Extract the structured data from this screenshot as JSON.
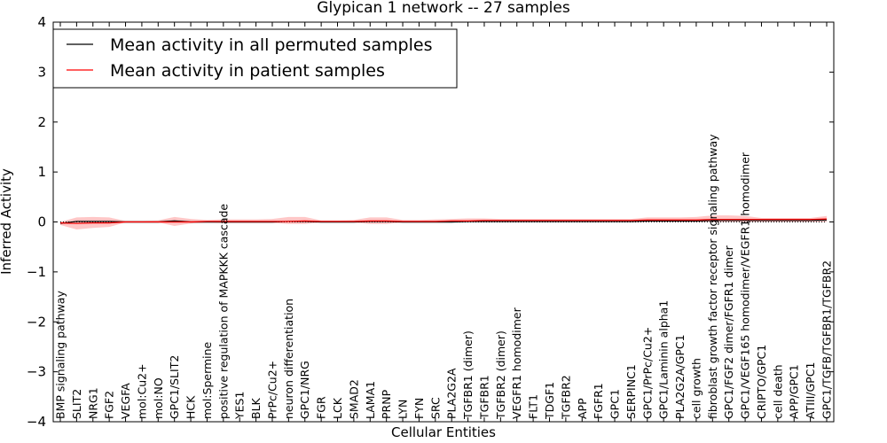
{
  "chart_data": {
    "type": "line",
    "title": "Glypican 1 network -- 27 samples",
    "xlabel": "Cellular Entities",
    "ylabel": "Inferred Activity",
    "ylim": [
      -4,
      4
    ],
    "yticks": [
      -4,
      -3,
      -2,
      -1,
      0,
      1,
      2,
      3,
      4
    ],
    "ytick_labels": [
      "−4",
      "−3",
      "−2",
      "−1",
      "0",
      "1",
      "2",
      "3",
      "4"
    ],
    "grid": false,
    "legend_position": "upper-left",
    "categories": [
      "BMP signaling pathway",
      "SLIT2",
      "NRG1",
      "FGF2",
      "VEGFA",
      "mol:Cu2+",
      "mol:NO",
      "GPC1/SLIT2",
      "HCK",
      "mol:Spermine",
      "positive regulation of MAPKKK cascade",
      "YES1",
      "BLK",
      "PrPc/Cu2+",
      "neuron differentiation",
      "GPC1/NRG",
      "FGR",
      "LCK",
      "SMAD2",
      "LAMA1",
      "PRNP",
      "LYN",
      "FYN",
      "SRC",
      "PLA2G2A",
      "TGFBR1 (dimer)",
      "TGFBR1",
      "TGFBR2 (dimer)",
      "VEGFR1 homodimer",
      "FLT1",
      "TDGF1",
      "TGFBR2",
      "APP",
      "FGFR1",
      "GPC1",
      "SERPINC1",
      "GPC1/PrPc/Cu2+",
      "GPC1/Laminin alpha1",
      "PLA2G2A/GPC1",
      "cell growth",
      "fibroblast growth factor receptor signaling pathway",
      "GPC1/FGF2 dimer/FGFR1 dimer",
      "GPC1/VEGF165 homodimer/VEGFR1 homodimer",
      "CRIPTO/GPC1",
      "cell death",
      "APP/GPC1",
      "ATIII/GPC1",
      "GPC1/TGFB/TGFBR1/TGFBR2"
    ],
    "series": [
      {
        "name": "Mean activity in all permuted samples",
        "color": "#000000",
        "values": [
          -0.03,
          0.01,
          0.01,
          0.01,
          0.0,
          0.0,
          0.0,
          0.02,
          0.0,
          0.0,
          0.0,
          0.0,
          0.0,
          0.0,
          0.01,
          0.01,
          0.0,
          0.0,
          0.0,
          0.01,
          0.01,
          0.0,
          0.0,
          0.0,
          0.0,
          0.01,
          0.01,
          0.01,
          0.01,
          0.01,
          0.01,
          0.01,
          0.01,
          0.01,
          0.01,
          0.01,
          0.02,
          0.02,
          0.02,
          0.02,
          0.03,
          0.03,
          0.03,
          0.03,
          0.03,
          0.03,
          0.03,
          0.04
        ],
        "band": {
          "color": "#cccccc",
          "lower": [
            -0.05,
            -0.03,
            -0.03,
            -0.03,
            -0.03,
            -0.03,
            -0.03,
            -0.02,
            -0.03,
            -0.03,
            -0.03,
            -0.03,
            -0.03,
            -0.03,
            -0.02,
            -0.02,
            -0.03,
            -0.03,
            -0.03,
            -0.02,
            -0.02,
            -0.03,
            -0.03,
            -0.03,
            -0.03,
            -0.02,
            -0.02,
            -0.02,
            -0.02,
            -0.02,
            -0.02,
            -0.02,
            -0.02,
            -0.02,
            -0.02,
            -0.02,
            -0.01,
            -0.01,
            -0.01,
            -0.01,
            0.0,
            0.0,
            0.0,
            0.0,
            0.0,
            0.0,
            0.0,
            0.01
          ],
          "upper": [
            -0.01,
            0.04,
            0.04,
            0.04,
            0.03,
            0.03,
            0.03,
            0.05,
            0.03,
            0.03,
            0.03,
            0.03,
            0.03,
            0.03,
            0.04,
            0.04,
            0.03,
            0.03,
            0.03,
            0.04,
            0.04,
            0.03,
            0.03,
            0.03,
            0.03,
            0.04,
            0.04,
            0.04,
            0.04,
            0.04,
            0.04,
            0.04,
            0.04,
            0.04,
            0.04,
            0.04,
            0.05,
            0.05,
            0.05,
            0.05,
            0.06,
            0.06,
            0.06,
            0.06,
            0.06,
            0.06,
            0.06,
            0.07
          ]
        }
      },
      {
        "name": "Mean activity in patient samples",
        "color": "#ff0000",
        "values": [
          -0.02,
          -0.03,
          -0.02,
          -0.02,
          0.0,
          0.0,
          0.0,
          0.0,
          0.0,
          0.01,
          0.01,
          0.01,
          0.01,
          0.01,
          0.01,
          0.02,
          0.01,
          0.01,
          0.01,
          0.02,
          0.02,
          0.01,
          0.01,
          0.01,
          0.02,
          0.02,
          0.03,
          0.03,
          0.03,
          0.03,
          0.03,
          0.03,
          0.03,
          0.03,
          0.03,
          0.03,
          0.04,
          0.04,
          0.04,
          0.04,
          0.05,
          0.05,
          0.05,
          0.05,
          0.05,
          0.05,
          0.05,
          0.06
        ],
        "band": {
          "color": "#ff9999",
          "lower": [
            -0.06,
            -0.15,
            -0.12,
            -0.1,
            -0.01,
            -0.01,
            -0.01,
            -0.08,
            -0.03,
            -0.01,
            -0.02,
            -0.02,
            -0.02,
            -0.02,
            -0.04,
            -0.04,
            -0.01,
            -0.01,
            -0.01,
            -0.04,
            -0.04,
            -0.01,
            -0.01,
            -0.01,
            0.0,
            0.0,
            0.0,
            0.0,
            0.0,
            0.0,
            0.0,
            0.0,
            0.0,
            0.0,
            0.0,
            0.0,
            0.0,
            0.0,
            0.0,
            0.0,
            0.0,
            0.0,
            0.0,
            0.0,
            0.0,
            0.0,
            0.0,
            0.0
          ],
          "upper": [
            0.0,
            0.09,
            0.1,
            0.09,
            0.02,
            0.02,
            0.03,
            0.1,
            0.06,
            0.04,
            0.05,
            0.05,
            0.05,
            0.06,
            0.1,
            0.1,
            0.03,
            0.03,
            0.04,
            0.09,
            0.09,
            0.04,
            0.04,
            0.05,
            0.06,
            0.07,
            0.07,
            0.06,
            0.06,
            0.06,
            0.06,
            0.06,
            0.06,
            0.06,
            0.06,
            0.06,
            0.09,
            0.09,
            0.09,
            0.1,
            0.13,
            0.13,
            0.12,
            0.08,
            0.08,
            0.08,
            0.08,
            0.12
          ]
        }
      }
    ],
    "reference_line": {
      "y": 0,
      "style": "dotted",
      "color": "#000000"
    }
  }
}
